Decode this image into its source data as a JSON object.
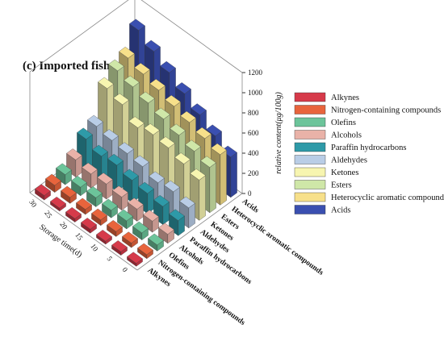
{
  "chart_data": {
    "type": "bar3d",
    "title": "(c) Imported fishmeal",
    "x_label": "Storage time(d)",
    "y_label": "relative content(μg/100g)",
    "times": [
      0,
      5,
      10,
      15,
      20,
      25,
      30
    ],
    "zlim": [
      0,
      1200
    ],
    "zticks": [
      0,
      200,
      400,
      600,
      800,
      1000,
      1200
    ],
    "series": [
      {
        "name": "Alkynes",
        "color": "#d63a4a",
        "values": [
          30,
          35,
          30,
          40,
          35,
          30,
          45
        ]
      },
      {
        "name": "Nitrogen-containing compounds",
        "color": "#e8643c",
        "values": [
          40,
          45,
          50,
          55,
          50,
          60,
          70
        ]
      },
      {
        "name": "Olefins",
        "color": "#6cc49a",
        "values": [
          60,
          70,
          80,
          75,
          90,
          85,
          100
        ]
      },
      {
        "name": "Alcohols",
        "color": "#e9b2a8",
        "values": [
          90,
          110,
          120,
          130,
          150,
          140,
          170
        ]
      },
      {
        "name": "Paraffin hydrocarbons",
        "color": "#2e9aa8",
        "values": [
          150,
          180,
          200,
          220,
          260,
          240,
          300
        ]
      },
      {
        "name": "Aldehydes",
        "color": "#b9cde6",
        "values": [
          200,
          250,
          230,
          280,
          300,
          320,
          350
        ]
      },
      {
        "name": "Ketones",
        "color": "#f7f5b0",
        "values": [
          400,
          450,
          500,
          520,
          480,
          600,
          650
        ]
      },
      {
        "name": "Esters",
        "color": "#cfe7a8",
        "values": [
          450,
          500,
          550,
          600,
          650,
          700,
          750
        ]
      },
      {
        "name": "Heterocyclic aromatic compounds",
        "color": "#f7e08a",
        "values": [
          500,
          550,
          600,
          650,
          700,
          750,
          800
        ]
      },
      {
        "name": "Acids",
        "color": "#3a4fb0",
        "values": [
          400,
          500,
          600,
          700,
          800,
          900,
          1000
        ]
      }
    ]
  }
}
